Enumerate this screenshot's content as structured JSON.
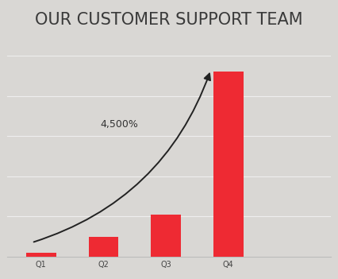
{
  "chart_data": {
    "type": "bar",
    "title": "OUR CUSTOMER SUPPORT TEAM",
    "categories": [
      "Q1",
      "Q2",
      "Q3",
      "Q4"
    ],
    "values": [
      0.1,
      0.5,
      1.05,
      4.6
    ],
    "color": "#ee2a33",
    "ylim": [
      0,
      5
    ],
    "yticks": [
      0,
      1,
      2,
      3,
      4,
      5
    ],
    "grid": true,
    "tick_labels": "x",
    "annotation": "4,500%"
  }
}
